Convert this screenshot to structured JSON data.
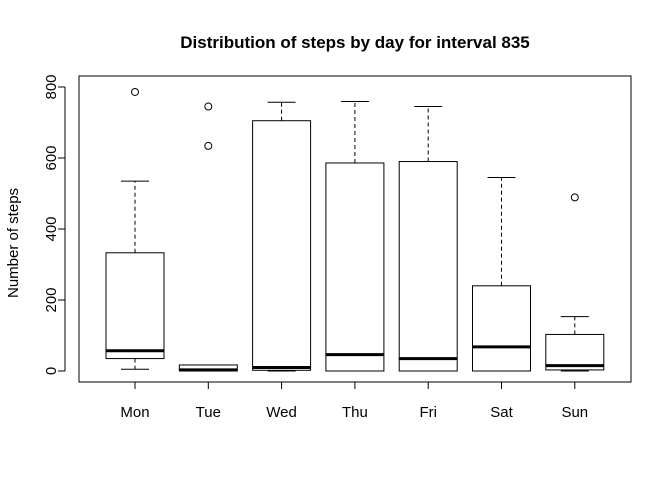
{
  "chart_data": {
    "type": "boxplot",
    "title": "Distribution of steps by day for interval 835",
    "xlabel": "",
    "ylabel": "Number of steps",
    "ylim": [
      -30,
      825
    ],
    "yticks": [
      0,
      200,
      400,
      600,
      800
    ],
    "categories": [
      "Mon",
      "Tue",
      "Wed",
      "Thu",
      "Fri",
      "Sat",
      "Sun"
    ],
    "boxes": [
      {
        "category": "Mon",
        "whisker_low": 5,
        "q1": 35,
        "median": 57,
        "q3": 333,
        "whisker_high": 535,
        "outliers": [
          786
        ]
      },
      {
        "category": "Tue",
        "whisker_low": 0,
        "q1": 0,
        "median": 3,
        "q3": 17,
        "whisker_high": 17,
        "outliers": [
          634,
          745
        ]
      },
      {
        "category": "Wed",
        "whisker_low": 0,
        "q1": 2,
        "median": 10,
        "q3": 705,
        "whisker_high": 757,
        "outliers": []
      },
      {
        "category": "Thu",
        "whisker_low": 0,
        "q1": 0,
        "median": 46,
        "q3": 586,
        "whisker_high": 759,
        "outliers": []
      },
      {
        "category": "Fri",
        "whisker_low": 0,
        "q1": 0,
        "median": 35,
        "q3": 590,
        "whisker_high": 745,
        "outliers": []
      },
      {
        "category": "Sat",
        "whisker_low": 0,
        "q1": 0,
        "median": 68,
        "q3": 240,
        "whisker_high": 545,
        "outliers": []
      },
      {
        "category": "Sun",
        "whisker_low": 0,
        "q1": 3,
        "median": 15,
        "q3": 103,
        "whisker_high": 153,
        "outliers": [
          489
        ]
      }
    ],
    "legend": "none",
    "grid": false
  }
}
